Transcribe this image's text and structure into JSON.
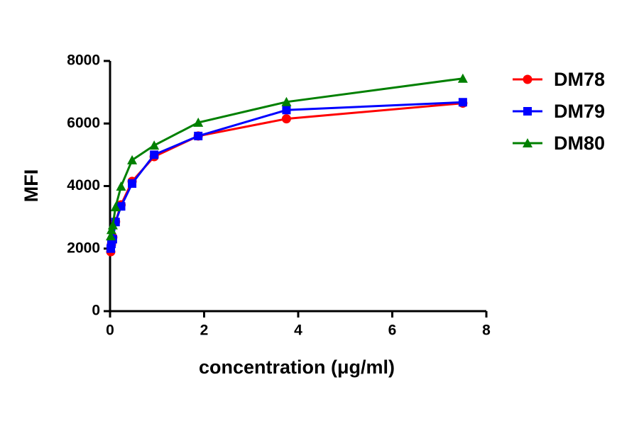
{
  "chart_data": {
    "type": "line",
    "x_label": "concentration (μg/ml)",
    "y_label": "MFI",
    "x": [
      0.015,
      0.029,
      0.059,
      0.117,
      0.234,
      0.469,
      0.938,
      1.875,
      3.75,
      7.5
    ],
    "series": [
      {
        "name": "DM78",
        "color": "#ff0000",
        "marker": "circle",
        "values": [
          1900,
          2130,
          2360,
          2860,
          3400,
          4150,
          4940,
          5600,
          6150,
          6650
        ]
      },
      {
        "name": "DM79",
        "color": "#0000ff",
        "marker": "square",
        "values": [
          2000,
          2150,
          2300,
          2850,
          3350,
          4080,
          5000,
          5600,
          6430,
          6680
        ]
      },
      {
        "name": "DM80",
        "color": "#008000",
        "marker": "triangle",
        "values": [
          2400,
          2600,
          2750,
          3330,
          3990,
          4830,
          5300,
          6030,
          6690,
          7440
        ]
      }
    ],
    "xlim": [
      0,
      8
    ],
    "xticks": [
      0,
      2,
      4,
      6,
      8
    ],
    "ylim": [
      0,
      8000
    ],
    "yticks": [
      0,
      2000,
      4000,
      6000,
      8000
    ],
    "legend": "right"
  }
}
